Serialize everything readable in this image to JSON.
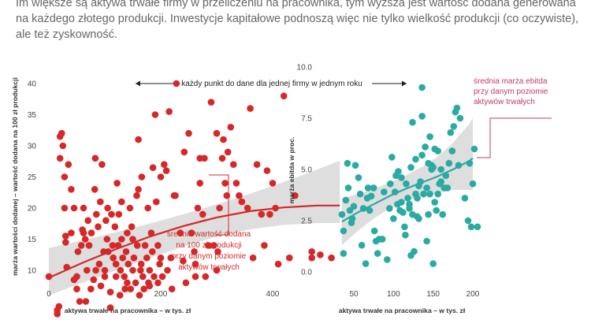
{
  "intro": {
    "line1": "Im większe są aktywa trwałe firmy w przeliczeniu na pracownika, tym wyższa jest wartość dodana generowana",
    "line2": "na każdego złotego produkcji. Inwestycje kapitałowe podnoszą więc nie tylko wielkość produkcji (co oczywiste),",
    "line3": "ale też zyskowność."
  },
  "top_note": "każdy punkt do dane dla jednej firmy w jednym roku",
  "colors": {
    "red": "#d62828",
    "teal": "#2aaaa2",
    "band": "#d8d8d8",
    "annot_red": "#d62828",
    "annot_pink": "#c23a6e"
  },
  "chart_data": [
    {
      "type": "scatter",
      "xlabel": "aktywa trwałe na pracownika – w tys. zł",
      "ylabel": "marża wartości dodanej – wartość dodana na 100 zł produkcji",
      "xlim": [
        0,
        520
      ],
      "ylim": [
        2,
        41
      ],
      "xticks": [
        "0",
        "200",
        "400"
      ],
      "yticks": [
        "10",
        "15",
        "20",
        "25",
        "30",
        "35",
        "40"
      ],
      "annotation": [
        "średnia wartość dodana",
        "na 100 zł produkcji",
        "przy danym poziomie",
        "aktywów trwałych"
      ],
      "trend": {
        "x": [
          0,
          60,
          120,
          180,
          240,
          300,
          360,
          420,
          480,
          520
        ],
        "y": [
          8.8,
          11.2,
          13.4,
          15.4,
          17.1,
          18.5,
          19.5,
          20.1,
          20.4,
          20.4
        ]
      },
      "band": {
        "upper": [
          13.6,
          14.8,
          16.1,
          17.5,
          19.0,
          20.6,
          22.3,
          24.2,
          26.2,
          27.6
        ],
        "lower": [
          6.0,
          8.0,
          10.0,
          12.0,
          13.8,
          15.4,
          16.6,
          17.3,
          17.6,
          17.6
        ]
      },
      "points": [
        [
          0,
          9
        ],
        [
          15,
          3
        ],
        [
          15,
          3.6
        ],
        [
          18,
          4.2
        ],
        [
          20,
          28
        ],
        [
          20,
          31.5
        ],
        [
          23,
          32
        ],
        [
          25,
          30
        ],
        [
          28,
          25
        ],
        [
          28,
          20
        ],
        [
          30,
          15.5
        ],
        [
          30,
          14.5
        ],
        [
          32,
          10.5
        ],
        [
          35,
          27
        ],
        [
          40,
          23
        ],
        [
          40,
          16
        ],
        [
          45,
          20
        ],
        [
          45,
          8.5
        ],
        [
          50,
          9
        ],
        [
          50,
          7
        ],
        [
          52,
          13
        ],
        [
          55,
          5
        ],
        [
          58,
          14
        ],
        [
          60,
          16.5
        ],
        [
          62,
          20
        ],
        [
          62,
          16
        ],
        [
          65,
          15
        ],
        [
          66,
          5
        ],
        [
          68,
          10
        ],
        [
          70,
          18
        ],
        [
          72,
          14
        ],
        [
          75,
          7
        ],
        [
          76,
          16
        ],
        [
          80,
          8.5
        ],
        [
          82,
          23
        ],
        [
          83,
          28
        ],
        [
          84,
          10
        ],
        [
          85,
          19
        ],
        [
          88,
          17
        ],
        [
          90,
          11
        ],
        [
          92,
          21
        ],
        [
          93,
          7.5
        ],
        [
          95,
          27
        ],
        [
          98,
          13
        ],
        [
          100,
          10
        ],
        [
          100,
          9
        ],
        [
          102,
          18
        ],
        [
          104,
          15
        ],
        [
          105,
          20
        ],
        [
          106,
          13
        ],
        [
          110,
          4
        ],
        [
          110,
          6.5
        ],
        [
          112,
          19
        ],
        [
          114,
          14
        ],
        [
          115,
          12
        ],
        [
          118,
          17
        ],
        [
          120,
          11
        ],
        [
          120,
          9
        ],
        [
          122,
          24
        ],
        [
          124,
          14
        ],
        [
          125,
          19
        ],
        [
          127,
          6
        ],
        [
          128,
          10
        ],
        [
          130,
          21
        ],
        [
          130,
          15
        ],
        [
          132,
          12
        ],
        [
          135,
          9
        ],
        [
          136,
          7
        ],
        [
          138,
          13
        ],
        [
          140,
          8
        ],
        [
          140,
          16
        ],
        [
          142,
          11
        ],
        [
          145,
          20
        ],
        [
          146,
          7
        ],
        [
          148,
          17
        ],
        [
          150,
          15
        ],
        [
          150,
          10
        ],
        [
          152,
          12
        ],
        [
          155,
          8
        ],
        [
          157,
          22
        ],
        [
          158,
          14
        ],
        [
          160,
          31
        ],
        [
          160,
          23
        ],
        [
          162,
          6
        ],
        [
          164,
          10
        ],
        [
          165,
          11
        ],
        [
          166,
          25
        ],
        [
          168,
          9
        ],
        [
          170,
          7
        ],
        [
          172,
          14
        ],
        [
          175,
          12
        ],
        [
          177,
          20
        ],
        [
          178,
          8
        ],
        [
          180,
          10
        ],
        [
          180,
          7.5
        ],
        [
          183,
          16
        ],
        [
          185,
          13
        ],
        [
          186,
          26.5
        ],
        [
          188,
          9
        ],
        [
          190,
          35
        ],
        [
          192,
          21
        ],
        [
          195,
          14
        ],
        [
          195,
          8
        ],
        [
          198,
          11
        ],
        [
          200,
          25
        ],
        [
          200,
          12
        ],
        [
          203,
          9
        ],
        [
          206,
          27
        ],
        [
          210,
          26
        ],
        [
          212,
          10
        ],
        [
          215,
          35.5
        ],
        [
          218,
          12
        ],
        [
          220,
          7
        ],
        [
          224,
          22
        ],
        [
          226,
          22
        ],
        [
          228,
          40
        ],
        [
          235,
          16
        ],
        [
          240,
          11.5
        ],
        [
          242,
          29
        ],
        [
          245,
          8
        ],
        [
          250,
          32
        ],
        [
          255,
          16
        ],
        [
          260,
          13
        ],
        [
          262,
          11
        ],
        [
          262,
          9
        ],
        [
          266,
          20
        ],
        [
          270,
          28
        ],
        [
          270,
          24
        ],
        [
          275,
          19
        ],
        [
          278,
          28
        ],
        [
          280,
          9
        ],
        [
          285,
          14
        ],
        [
          290,
          37
        ],
        [
          295,
          14
        ],
        [
          300,
          32
        ],
        [
          300,
          10
        ],
        [
          302,
          13
        ],
        [
          305,
          20
        ],
        [
          310,
          28
        ],
        [
          312,
          31
        ],
        [
          315,
          24
        ],
        [
          318,
          22
        ],
        [
          320,
          29
        ],
        [
          325,
          33
        ],
        [
          330,
          27
        ],
        [
          335,
          24
        ],
        [
          340,
          22
        ],
        [
          345,
          21
        ],
        [
          355,
          20
        ],
        [
          360,
          36
        ],
        [
          365,
          12
        ],
        [
          372,
          27
        ],
        [
          380,
          19
        ],
        [
          385,
          14
        ],
        [
          390,
          26
        ],
        [
          395,
          19
        ],
        [
          400,
          24
        ],
        [
          405,
          20
        ],
        [
          410,
          11
        ],
        [
          420,
          38
        ],
        [
          430,
          12
        ],
        [
          440,
          22
        ],
        [
          470,
          13
        ],
        [
          470,
          12
        ],
        [
          485,
          12.5
        ],
        [
          505,
          12
        ]
      ]
    },
    {
      "type": "scatter",
      "xlabel": "aktywa trwałe na pracownika – w tys. zł",
      "ylabel": "marża ebitda w proc.",
      "xlim": [
        20,
        215
      ],
      "ylim": [
        -0.3,
        10
      ],
      "xticks": [
        "50",
        "100",
        "150",
        "200"
      ],
      "yticks": [
        "0.0",
        "2.5",
        "5.0",
        "7.5",
        "10.0"
      ],
      "annotation": [
        "średnia marża ebitda",
        "przy danym poziomie",
        "aktywów trwałych"
      ],
      "trend": {
        "x": [
          35,
          55,
          75,
          95,
          115,
          135,
          155,
          175,
          195,
          200
        ],
        "y": [
          2.45,
          2.9,
          3.3,
          3.7,
          4.05,
          4.35,
          4.65,
          5.0,
          5.4,
          5.55
        ]
      },
      "band": {
        "upper": [
          3.6,
          3.8,
          4.05,
          4.35,
          4.7,
          5.1,
          5.6,
          6.3,
          7.2,
          7.5
        ],
        "lower": [
          1.3,
          2.0,
          2.6,
          3.1,
          3.45,
          3.7,
          3.85,
          4.0,
          4.0,
          4.0
        ]
      },
      "points": [
        [
          35,
          2.8
        ],
        [
          37,
          0.9
        ],
        [
          37,
          2.0
        ],
        [
          40,
          3.5
        ],
        [
          42,
          5.3
        ],
        [
          43,
          4.1
        ],
        [
          45,
          3.0
        ],
        [
          47,
          2.4
        ],
        [
          48,
          2.6
        ],
        [
          50,
          3.2
        ],
        [
          52,
          5.2
        ],
        [
          56,
          4.6
        ],
        [
          58,
          3.8
        ],
        [
          60,
          1.3
        ],
        [
          62,
          3.1
        ],
        [
          65,
          0.4
        ],
        [
          67,
          3.6
        ],
        [
          68,
          4.1
        ],
        [
          70,
          3.0
        ],
        [
          72,
          3.7
        ],
        [
          75,
          4.1
        ],
        [
          76,
          2.0
        ],
        [
          78,
          1.5
        ],
        [
          80,
          0.9
        ],
        [
          82,
          1.6
        ],
        [
          86,
          1.6
        ],
        [
          88,
          3.9
        ],
        [
          92,
          0.6
        ],
        [
          95,
          3.1
        ],
        [
          96,
          4.3
        ],
        [
          98,
          5.6
        ],
        [
          100,
          2.6
        ],
        [
          102,
          3.9
        ],
        [
          103,
          4.7
        ],
        [
          105,
          3.3
        ],
        [
          106,
          4.9
        ],
        [
          108,
          3.0
        ],
        [
          110,
          4.6
        ],
        [
          110,
          3.4
        ],
        [
          112,
          2.9
        ],
        [
          114,
          2.2
        ],
        [
          115,
          1.8
        ],
        [
          116,
          4.3
        ],
        [
          118,
          3.6
        ],
        [
          120,
          3.3
        ],
        [
          120,
          3.1
        ],
        [
          122,
          0.8
        ],
        [
          122,
          5.1
        ],
        [
          124,
          2.8
        ],
        [
          124,
          7.3
        ],
        [
          126,
          1.0
        ],
        [
          128,
          3.8
        ],
        [
          128,
          5.5
        ],
        [
          130,
          3.6
        ],
        [
          130,
          2.7
        ],
        [
          132,
          2.6
        ],
        [
          132,
          4.2
        ],
        [
          134,
          4.4
        ],
        [
          136,
          9.0
        ],
        [
          136,
          5.7
        ],
        [
          136,
          7.6
        ],
        [
          138,
          3.8
        ],
        [
          140,
          6.1
        ],
        [
          142,
          4.1
        ],
        [
          142,
          1.5
        ],
        [
          144,
          2.8
        ],
        [
          144,
          5.3
        ],
        [
          146,
          3.8
        ],
        [
          146,
          6.6
        ],
        [
          148,
          5.0
        ],
        [
          148,
          5.2
        ],
        [
          150,
          5.1
        ],
        [
          150,
          0.4
        ],
        [
          152,
          3.4
        ],
        [
          152,
          6.0
        ],
        [
          154,
          3.0
        ],
        [
          156,
          3.8
        ],
        [
          156,
          5.9
        ],
        [
          158,
          4.3
        ],
        [
          160,
          5.0
        ],
        [
          160,
          4.4
        ],
        [
          162,
          2.8
        ],
        [
          164,
          4.1
        ],
        [
          166,
          4.7
        ],
        [
          168,
          4.1
        ],
        [
          170,
          5.3
        ],
        [
          172,
          6.8
        ],
        [
          174,
          5.9
        ],
        [
          176,
          7.1
        ],
        [
          178,
          7.8
        ],
        [
          180,
          8.0
        ],
        [
          182,
          5.2
        ],
        [
          184,
          7.5
        ],
        [
          190,
          3.6
        ],
        [
          194,
          2.5
        ],
        [
          196,
          5.3
        ],
        [
          198,
          2.2
        ],
        [
          200,
          4.3
        ],
        [
          202,
          6.0
        ],
        [
          206,
          2.2
        ]
      ]
    }
  ]
}
